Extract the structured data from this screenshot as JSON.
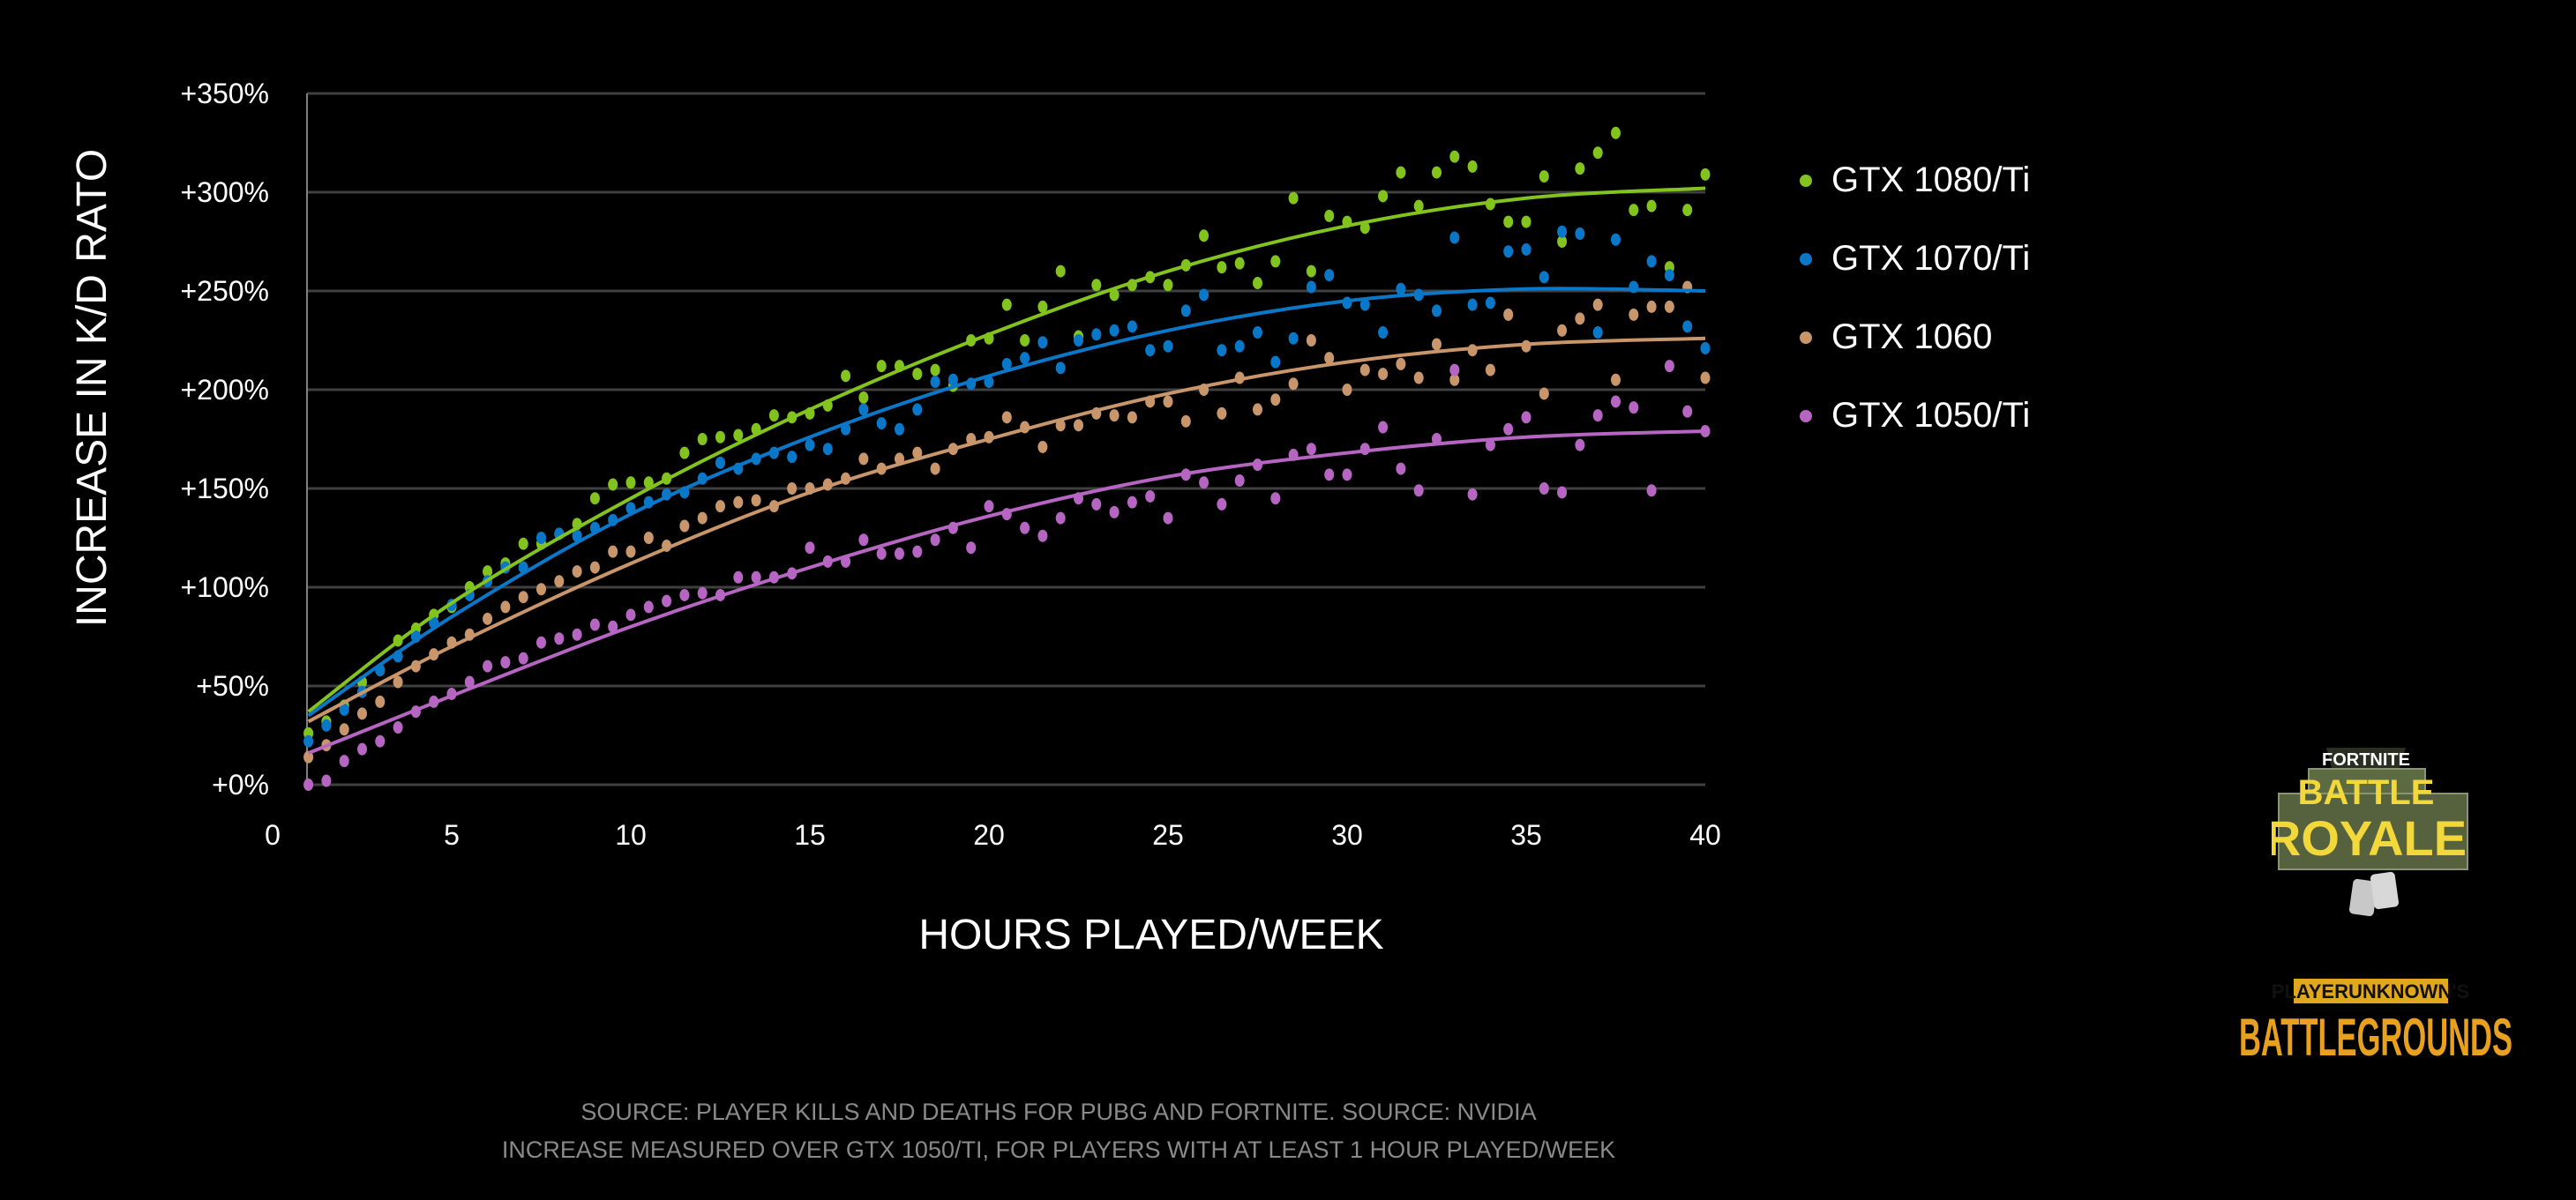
{
  "chart_data": {
    "type": "scatter",
    "title": "",
    "xlabel": "HOURS PLAYED/WEEK",
    "ylabel": "INCREASE IN K/D RATO",
    "xlim": [
      0,
      40
    ],
    "ylim": [
      0,
      350
    ],
    "xticks": [
      "0",
      "5",
      "10",
      "15",
      "20",
      "25",
      "30",
      "35",
      "40"
    ],
    "yticks": [
      "+0%",
      "+50%",
      "+100%",
      "+150%",
      "+200%",
      "+250%",
      "+300%",
      "+350%"
    ],
    "grid": true,
    "legend_position": "right",
    "x": [
      1,
      1.5,
      2,
      2.5,
      3,
      3.5,
      4,
      4.5,
      5,
      5.5,
      6,
      6.5,
      7,
      7.5,
      8,
      8.5,
      9,
      9.5,
      10,
      10.5,
      11,
      11.5,
      12,
      12.5,
      13,
      13.5,
      14,
      14.5,
      15,
      15.5,
      16,
      16.5,
      17,
      17.5,
      18,
      18.5,
      19,
      19.5,
      20,
      20.5,
      21,
      21.5,
      22,
      22.5,
      23,
      23.5,
      24,
      24.5,
      25,
      25.5,
      26,
      26.5,
      27,
      27.5,
      28,
      28.5,
      29,
      29.5,
      30,
      30.5,
      31,
      31.5,
      32,
      32.5,
      33,
      33.5,
      34,
      34.5,
      35,
      35.5,
      36,
      36.5,
      37,
      37.5,
      38,
      38.5,
      39,
      39.5,
      40
    ],
    "trend_x": [
      1,
      5,
      10,
      15,
      20,
      25,
      30,
      35,
      40
    ],
    "series": [
      {
        "name": "GTX 1080/Ti",
        "color": "#82c31e",
        "values": [
          26,
          32,
          40,
          52,
          58,
          73,
          79,
          86,
          90,
          100,
          108,
          112,
          122,
          122,
          127,
          132,
          145,
          152,
          153,
          153,
          155,
          168,
          175,
          176,
          177,
          180,
          187,
          186,
          188,
          192,
          207,
          196,
          212,
          212,
          208,
          210,
          202,
          225,
          226,
          243,
          225,
          242,
          260,
          227,
          253,
          248,
          253,
          257,
          253,
          263,
          278,
          262,
          264,
          254,
          265,
          297,
          260,
          288,
          285,
          282,
          298,
          310,
          293,
          310,
          318,
          313,
          294,
          285,
          285,
          308,
          275,
          312,
          320,
          330,
          291,
          293,
          262,
          291,
          309
        ],
        "trend": [
          37,
          92,
          145,
          190,
          228,
          260,
          283,
          297,
          302
        ]
      },
      {
        "name": "GTX 1070/Ti",
        "color": "#0a78c8",
        "values": [
          22,
          30,
          38,
          47,
          58,
          65,
          75,
          82,
          91,
          96,
          103,
          110,
          110,
          125,
          127,
          126,
          130,
          134,
          140,
          143,
          147,
          148,
          155,
          163,
          160,
          165,
          168,
          166,
          172,
          170,
          180,
          190,
          183,
          180,
          190,
          204,
          205,
          203,
          204,
          213,
          216,
          224,
          211,
          225,
          228,
          230,
          232,
          220,
          222,
          240,
          248,
          220,
          222,
          229,
          214,
          226,
          252,
          258,
          244,
          243,
          229,
          251,
          248,
          240,
          277,
          243,
          244,
          270,
          271,
          257,
          280,
          279,
          229,
          276,
          252,
          265,
          258,
          232,
          221
        ],
        "trend": [
          35,
          85,
          137,
          176,
          207,
          230,
          245,
          251,
          250
        ]
      },
      {
        "name": "GTX 1060",
        "color": "#c8966a",
        "values": [
          14,
          20,
          28,
          36,
          42,
          52,
          60,
          66,
          72,
          76,
          84,
          90,
          95,
          99,
          103,
          108,
          110,
          118,
          118,
          125,
          121,
          131,
          135,
          141,
          143,
          144,
          141,
          150,
          150,
          152,
          155,
          165,
          160,
          165,
          168,
          160,
          170,
          175,
          176,
          186,
          181,
          171,
          182,
          182,
          188,
          187,
          186,
          194,
          194,
          184,
          200,
          188,
          206,
          190,
          195,
          203,
          225,
          216,
          200,
          210,
          208,
          213,
          206,
          223,
          205,
          220,
          210,
          238,
          222,
          198,
          230,
          236,
          243,
          205,
          238,
          242,
          242,
          252,
          206
        ],
        "trend": [
          32,
          70,
          112,
          148,
          175,
          198,
          214,
          223,
          226
        ]
      },
      {
        "name": "GTX 1050/Ti",
        "color": "#b666c2",
        "values": [
          0,
          2,
          12,
          18,
          22,
          29,
          37,
          42,
          46,
          52,
          60,
          62,
          64,
          72,
          74,
          76,
          81,
          80,
          86,
          90,
          93,
          96,
          97,
          96,
          105,
          105,
          105,
          107,
          120,
          113,
          113,
          124,
          117,
          117,
          118,
          124,
          130,
          120,
          141,
          137,
          130,
          126,
          135,
          145,
          142,
          138,
          143,
          146,
          135,
          157,
          153,
          142,
          154,
          162,
          145,
          167,
          170,
          157,
          157,
          170,
          181,
          160,
          149,
          175,
          210,
          147,
          172,
          180,
          186,
          150,
          148,
          172,
          187,
          194,
          191,
          149,
          212,
          189,
          179
        ],
        "trend": [
          16,
          45,
          80,
          110,
          136,
          156,
          168,
          176,
          179
        ]
      }
    ]
  },
  "source_lines": [
    "SOURCE: PLAYER KILLS AND DEATHS FOR PUBG AND FORTNITE. SOURCE: NVIDIA",
    "INCREASE MEASURED OVER GTX 1050/TI, FOR PLAYERS WITH AT LEAST 1 HOUR PLAYED/WEEK"
  ],
  "logos": {
    "fortnite": {
      "top": "FORTNITE",
      "line1": "BATTLE",
      "line2": "ROYALE"
    },
    "pubg": {
      "top": "PLAYERUNKNOWN'S",
      "main": "BATTLEGROUNDS"
    }
  }
}
